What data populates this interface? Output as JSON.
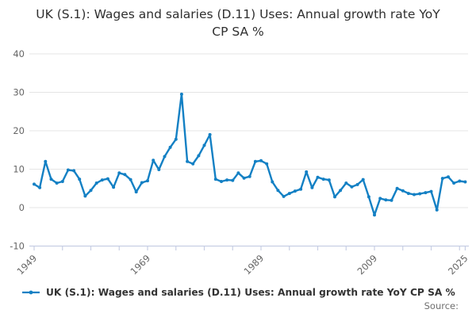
{
  "title": "UK (S.1): Wages and salaries (D.11) Uses: Annual growth rate YoY CP SA %",
  "legend": {
    "label": "UK (S.1): Wages and salaries (D.11) Uses: Annual growth rate YoY CP SA %",
    "marker": "line-with-dot"
  },
  "source_label": "Source:",
  "colors": {
    "series": "#1380c4",
    "grid": "#e5e5e5",
    "axis": "#c7cee4",
    "title_text": "#2f2f2f",
    "tick_text": "#666666",
    "legend_text": "#333333",
    "source_text": "#6f6f6f",
    "background": "#ffffff"
  },
  "chart_data": {
    "type": "line",
    "title": "UK (S.1): Wages and salaries (D.11) Uses: Annual growth rate YoY CP SA %",
    "xlabel": "",
    "ylabel": "",
    "grid": "horizontal",
    "legend_position": "bottom-left",
    "marker": "dot",
    "ylim": [
      -10,
      40
    ],
    "xlim": [
      1948,
      2026
    ],
    "y_ticks": [
      40,
      30,
      20,
      10,
      0,
      -10
    ],
    "x_tick_step_years": 5,
    "x_tick_labels": [
      "1949",
      "1969",
      "1989",
      "2009",
      "2025"
    ],
    "x_tick_label_years": [
      1949,
      1969,
      1989,
      2009,
      2025
    ],
    "years": {
      "start": 1949,
      "end": 2025
    },
    "values": [
      6.1,
      5.2,
      12.0,
      7.4,
      6.4,
      6.8,
      9.8,
      9.6,
      7.4,
      3.0,
      4.5,
      6.4,
      7.2,
      7.5,
      5.3,
      9.0,
      8.6,
      7.3,
      4.1,
      6.5,
      7.0,
      12.3,
      9.9,
      13.3,
      15.7,
      17.8,
      29.5,
      12.0,
      11.4,
      13.5,
      16.2,
      19.0,
      7.4,
      6.8,
      7.2,
      7.1,
      9.0,
      7.7,
      8.1,
      12.0,
      12.2,
      11.4,
      6.7,
      4.5,
      2.9,
      3.7,
      4.3,
      4.8,
      9.3,
      5.2,
      7.9,
      7.4,
      7.2,
      2.8,
      4.5,
      6.4,
      5.4,
      6.0,
      7.3,
      2.8,
      -1.9,
      2.4,
      2.0,
      1.9,
      5.0,
      4.4,
      3.7,
      3.4,
      3.6,
      3.9,
      4.2,
      -0.6,
      7.6,
      8.0,
      6.4,
      6.9,
      6.7
    ]
  }
}
